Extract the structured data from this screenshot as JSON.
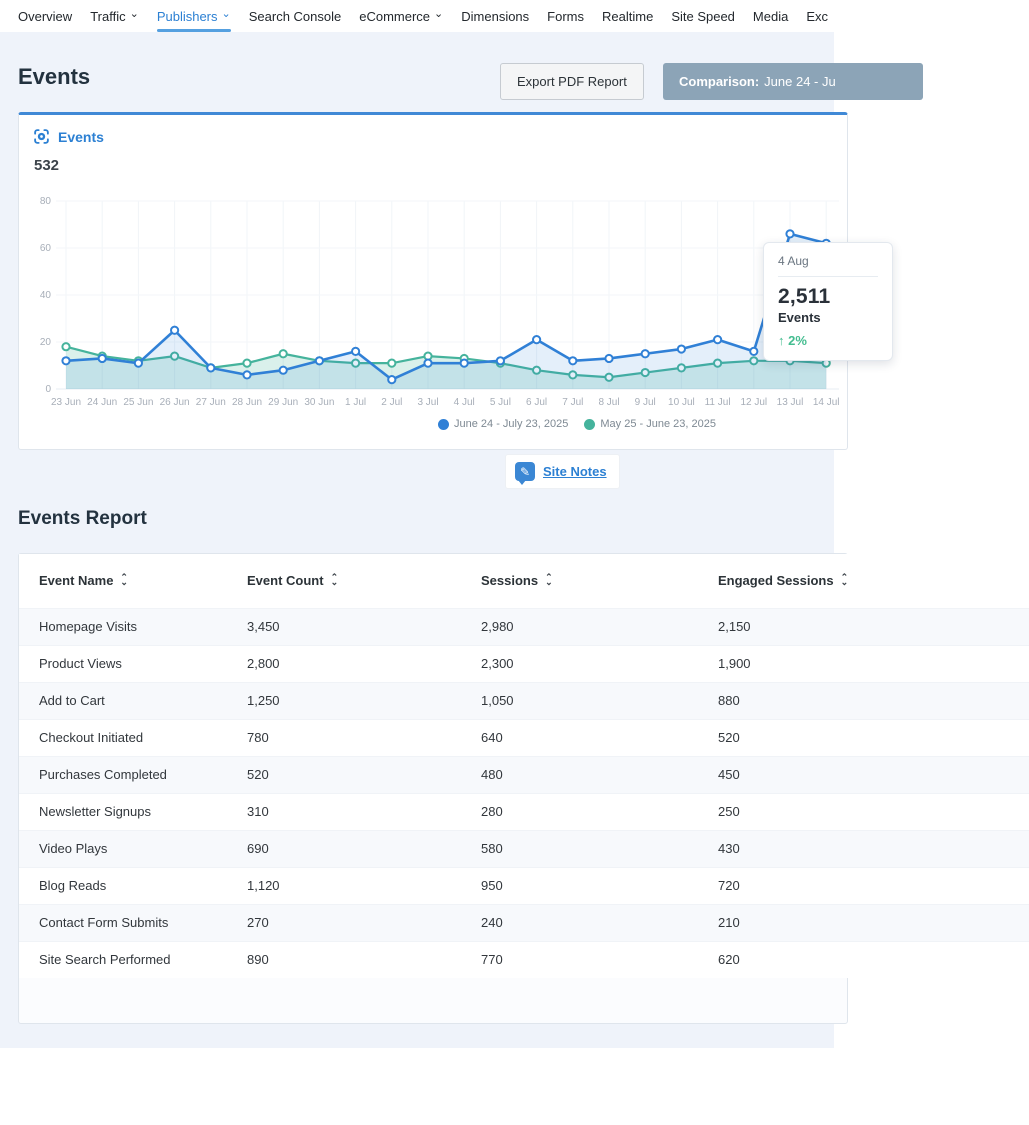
{
  "nav": {
    "items": [
      {
        "label": "Overview",
        "caret": false,
        "active": false
      },
      {
        "label": "Traffic",
        "caret": true,
        "active": false
      },
      {
        "label": "Publishers",
        "caret": true,
        "active": true
      },
      {
        "label": "Search Console",
        "caret": false,
        "active": false
      },
      {
        "label": "eCommerce",
        "caret": true,
        "active": false
      },
      {
        "label": "Dimensions",
        "caret": false,
        "active": false
      },
      {
        "label": "Forms",
        "caret": false,
        "active": false
      },
      {
        "label": "Realtime",
        "caret": false,
        "active": false
      },
      {
        "label": "Site Speed",
        "caret": false,
        "active": false
      },
      {
        "label": "Media",
        "caret": false,
        "active": false
      },
      {
        "label": "Exc",
        "caret": false,
        "active": false
      }
    ]
  },
  "page": {
    "title": "Events",
    "export_button": "Export PDF Report",
    "comparison_bold": "Comparison:",
    "comparison_range": "June 24 - Ju"
  },
  "chart_panel": {
    "title": "Events",
    "total": "532",
    "site_notes_label": "Site Notes"
  },
  "tooltip": {
    "date": "4 Aug",
    "value": "2,511",
    "label": "Events",
    "delta": "↑ 2%"
  },
  "chart_data": {
    "type": "line",
    "title": "Events",
    "x": [
      "23 Jun",
      "24 Jun",
      "25 Jun",
      "26 Jun",
      "27 Jun",
      "28 Jun",
      "29 Jun",
      "30 Jun",
      "1 Jul",
      "2 Jul",
      "3 Jul",
      "4 Jul",
      "5 Jul",
      "6 Jul",
      "7 Jul",
      "8 Jul",
      "9 Jul",
      "10 Jul",
      "11 Jul",
      "12 Jul",
      "13 Jul",
      "14 Jul"
    ],
    "series": [
      {
        "name": "June 24 - July 23, 2025",
        "color": "#3080d6",
        "fill": "rgba(48,128,214,0.13)",
        "values": [
          12,
          13,
          11,
          25,
          9,
          6,
          8,
          12,
          16,
          4,
          11,
          11,
          12,
          21,
          12,
          13,
          15,
          17,
          21,
          16,
          66,
          62
        ]
      },
      {
        "name": "May 25 - June 23, 2025",
        "color": "#45b39c",
        "fill": "rgba(69,179,156,0.20)",
        "values": [
          18,
          14,
          12,
          14,
          9,
          11,
          15,
          12,
          11,
          11,
          14,
          13,
          11,
          8,
          6,
          5,
          7,
          9,
          11,
          12,
          12,
          11
        ]
      }
    ],
    "ylim": [
      0,
      80
    ],
    "yticks": [
      0,
      20,
      40,
      60,
      80
    ],
    "grid": true,
    "legend_position": "bottom"
  },
  "report": {
    "title": "Events Report",
    "columns": [
      "Event Name",
      "Event Count",
      "Sessions",
      "Engaged Sessions"
    ],
    "rows": [
      {
        "event_name": "Homepage Visits",
        "event_count": "3,450",
        "sessions": "2,980",
        "engaged_sessions": "2,150"
      },
      {
        "event_name": "Product Views",
        "event_count": "2,800",
        "sessions": "2,300",
        "engaged_sessions": "1,900"
      },
      {
        "event_name": "Add to Cart",
        "event_count": "1,250",
        "sessions": "1,050",
        "engaged_sessions": "880"
      },
      {
        "event_name": "Checkout Initiated",
        "event_count": "780",
        "sessions": "640",
        "engaged_sessions": "520"
      },
      {
        "event_name": "Purchases Completed",
        "event_count": "520",
        "sessions": "480",
        "engaged_sessions": "450"
      },
      {
        "event_name": "Newsletter Signups",
        "event_count": "310",
        "sessions": "280",
        "engaged_sessions": "250"
      },
      {
        "event_name": "Video Plays",
        "event_count": "690",
        "sessions": "580",
        "engaged_sessions": "430"
      },
      {
        "event_name": "Blog Reads",
        "event_count": "1,120",
        "sessions": "950",
        "engaged_sessions": "720"
      },
      {
        "event_name": "Contact Form Submits",
        "event_count": "270",
        "sessions": "240",
        "engaged_sessions": "210"
      },
      {
        "event_name": "Site Search Performed",
        "event_count": "890",
        "sessions": "770",
        "engaged_sessions": "620"
      }
    ]
  },
  "colors": {
    "accent_blue": "#2c80d3",
    "card_top_accent": "#4089d6",
    "comparison_button_bg": "#8ca4b7",
    "delta_green": "#44bd90",
    "page_bg": "#eff3fa",
    "stripe_bg": "#f7f9fc"
  }
}
